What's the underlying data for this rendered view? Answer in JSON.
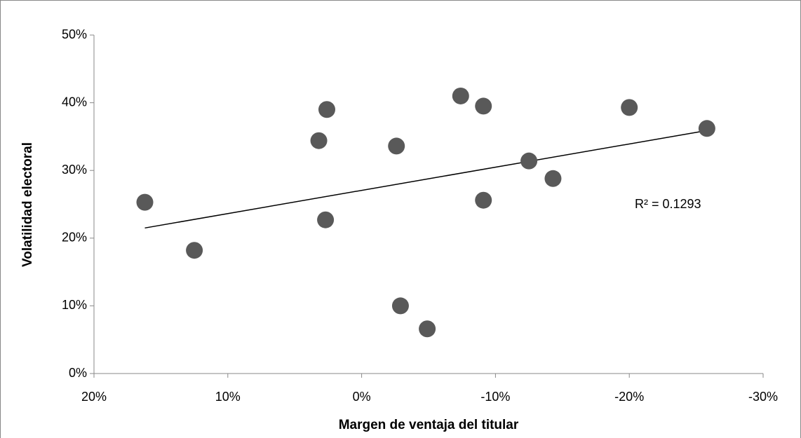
{
  "chart_data": {
    "type": "scatter",
    "x_label": "Margen de ventaja del titular",
    "y_label": "Volatilidad electoral",
    "annotation": "R² = 0.1293",
    "x": [
      16.2,
      12.5,
      3.2,
      2.6,
      2.7,
      -2.9,
      -2.6,
      -4.9,
      -7.4,
      -9.1,
      -9.1,
      -12.5,
      -14.3,
      -20.0,
      -25.8
    ],
    "series": [
      {
        "color": "#595959",
        "values": [
          25.3,
          18.2,
          34.4,
          39.0,
          22.7,
          10.0,
          33.6,
          6.6,
          41.0,
          39.5,
          25.6,
          31.4,
          28.8,
          39.3,
          36.2
        ]
      }
    ],
    "trendline": {
      "x": [
        16.2,
        -25.8
      ],
      "y": [
        21.5,
        35.9
      ],
      "color": "#000000"
    },
    "xlim": [
      20,
      -30
    ],
    "ylim": [
      0,
      50
    ],
    "xticks": [
      {
        "value": 20,
        "label": "20%"
      },
      {
        "value": 10,
        "label": "10%"
      },
      {
        "value": 0,
        "label": "0%"
      },
      {
        "value": -10,
        "label": "-10%"
      },
      {
        "value": -20,
        "label": "-20%"
      },
      {
        "value": -30,
        "label": "-30%"
      }
    ],
    "yticks": [
      {
        "value": 0,
        "label": "0%"
      },
      {
        "value": 10,
        "label": "10%"
      },
      {
        "value": 20,
        "label": "20%"
      },
      {
        "value": 30,
        "label": "30%"
      },
      {
        "value": 40,
        "label": "40%"
      },
      {
        "value": 50,
        "label": "50%"
      }
    ]
  }
}
